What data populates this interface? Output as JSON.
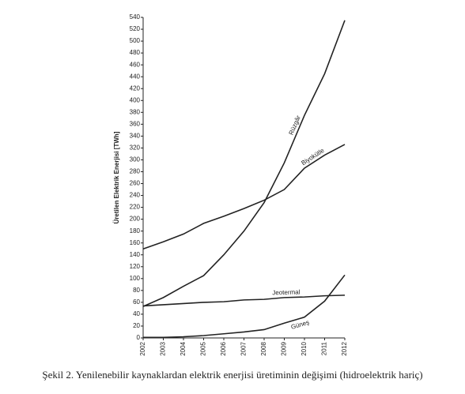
{
  "chart_data": {
    "type": "line",
    "y_label": "Üretilen Elektrik Enerjisi [TWh]",
    "caption": "Şekil 2. Yenilenebilir kaynaklardan elektrik enerjisi üretiminin değişimi (hidroelektrik hariç)",
    "x": [
      2002,
      2003,
      2004,
      2005,
      2006,
      2007,
      2008,
      2009,
      2010,
      2011,
      2012
    ],
    "xlim": [
      2002,
      2012
    ],
    "xticks": [
      2002,
      2003,
      2004,
      2005,
      2006,
      2007,
      2008,
      2009,
      2010,
      2011,
      2012
    ],
    "ylim": [
      0,
      540
    ],
    "yticks": [
      0,
      20,
      40,
      60,
      80,
      100,
      120,
      140,
      160,
      180,
      200,
      220,
      240,
      260,
      280,
      300,
      320,
      340,
      360,
      380,
      400,
      420,
      440,
      460,
      480,
      500,
      520,
      540
    ],
    "grid": false,
    "series": [
      {
        "name": "Rüzgâr",
        "color": "#222222",
        "values": [
          53,
          68,
          87,
          105,
          140,
          180,
          228,
          295,
          375,
          445,
          535
        ]
      },
      {
        "name": "Biyokütle",
        "color": "#222222",
        "values": [
          150,
          162,
          175,
          193,
          205,
          218,
          232,
          250,
          286,
          308,
          326
        ]
      },
      {
        "name": "Jeotermal",
        "color": "#222222",
        "values": [
          54,
          56,
          58,
          60,
          61,
          64,
          65,
          68,
          69,
          71,
          72
        ]
      },
      {
        "name": "Güneş",
        "color": "#222222",
        "values": [
          1,
          1,
          2,
          4,
          7,
          10,
          14,
          25,
          35,
          62,
          106
        ]
      }
    ]
  }
}
